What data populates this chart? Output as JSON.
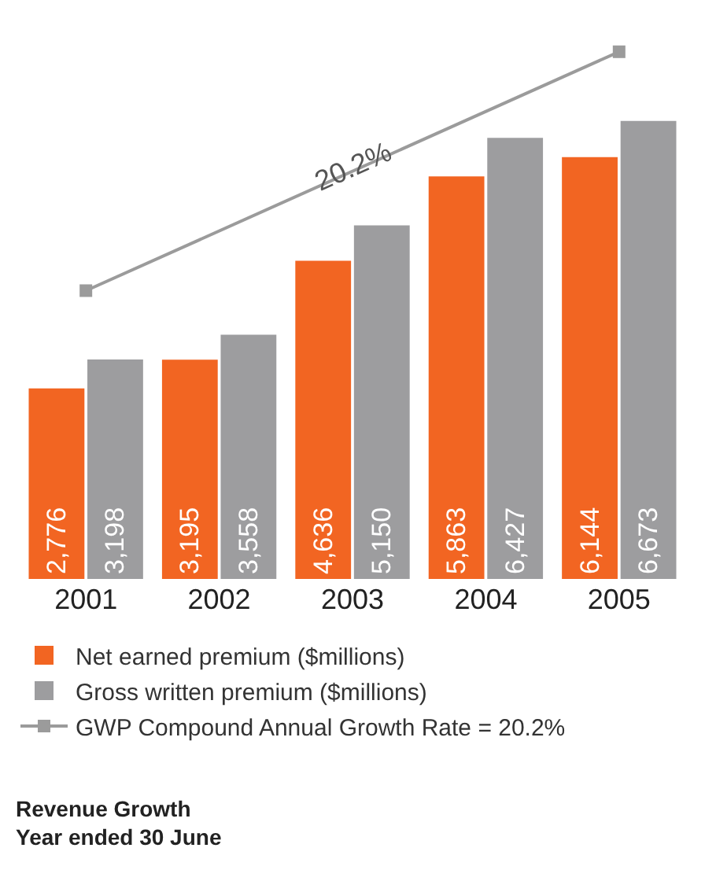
{
  "chart_data": {
    "type": "bar",
    "title": "Revenue Growth\nYear ended 30 June",
    "categories": [
      "2001",
      "2002",
      "2003",
      "2004",
      "2005"
    ],
    "series": [
      {
        "name": "Net earned premium ($millions)",
        "color": "#f26522",
        "values": [
          2776,
          3195,
          4636,
          5863,
          6144
        ],
        "value_labels": [
          "2,776",
          "3,195",
          "4,636",
          "5,863",
          "6,144"
        ]
      },
      {
        "name": "Gross written premium ($millions)",
        "color": "#9d9d9f",
        "values": [
          3198,
          3558,
          5150,
          6427,
          6673
        ],
        "value_labels": [
          "3,198",
          "3,558",
          "5,150",
          "6,427",
          "6,673"
        ]
      },
      {
        "name": "GWP Compound Annual Growth Rate = 20.2%",
        "type": "line",
        "color": "#9b9b9b",
        "marker": "square",
        "values": [
          4200,
          null,
          null,
          null,
          7680
        ],
        "value_labels": [
          null,
          null,
          null,
          null,
          null
        ]
      }
    ],
    "annotations": [
      {
        "text": "20.2%",
        "x": "2003",
        "y": 6000
      }
    ],
    "legend": "bottom"
  }
}
